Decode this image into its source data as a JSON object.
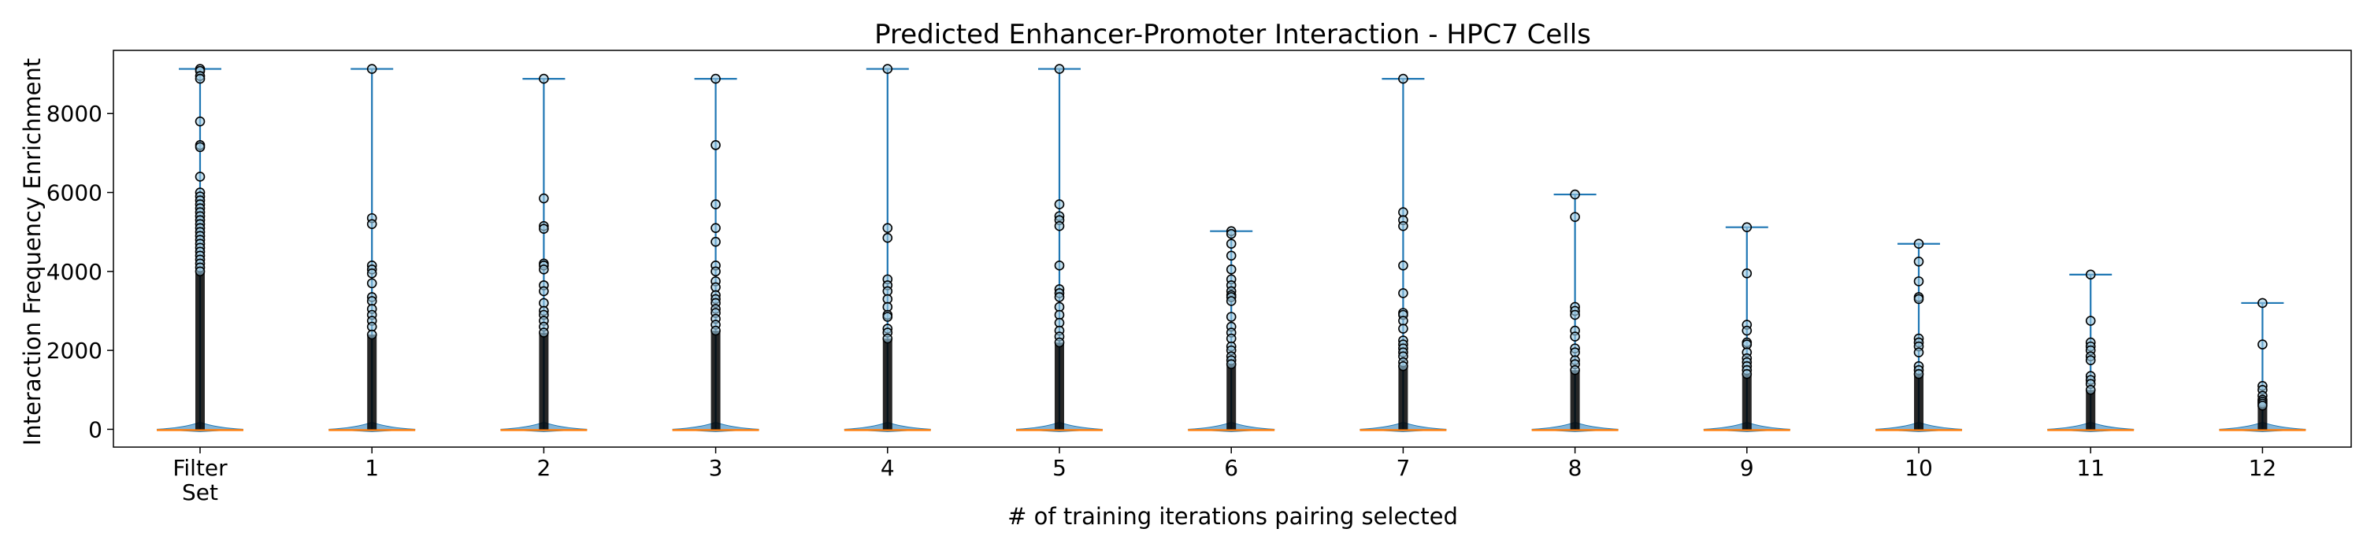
{
  "chart_data": {
    "type": "violin",
    "title": "Predicted Enhancer-Promoter Interaction - HPC7 Cells",
    "xlabel": "# of training iterations pairing selected",
    "ylabel": "Interaction Frequency Enrichment",
    "ylim": [
      -450,
      9600
    ],
    "yticks": [
      0,
      2000,
      4000,
      6000,
      8000
    ],
    "grid": false,
    "legend": "none",
    "colors": {
      "whisker": "#1f77b4",
      "violin_fill": "#1f77b4",
      "median": "#ff7f0e",
      "outlier_edge": "#000000"
    },
    "categories": [
      {
        "label": [
          "Filter",
          "Set"
        ],
        "max": 9130,
        "outliers": [
          9130,
          9080,
          8950,
          8880,
          7800,
          7200,
          7150,
          6400,
          6000,
          5900,
          5800,
          5700,
          5600,
          5500,
          5400,
          5300,
          5200,
          5100,
          5000,
          4900,
          4800,
          4700,
          4600,
          4500,
          4400,
          4300,
          4200,
          4100,
          4000
        ]
      },
      {
        "label": [
          "1"
        ],
        "max": 9130,
        "outliers": [
          9130,
          5350,
          5200,
          4150,
          4050,
          3950,
          3700,
          3350,
          3250,
          3050,
          2900,
          2750,
          2600,
          2400
        ]
      },
      {
        "label": [
          "2"
        ],
        "max": 8880,
        "outliers": [
          8880,
          5850,
          5150,
          5080,
          4200,
          4150,
          4050,
          3650,
          3500,
          3200,
          3000,
          2900,
          2750,
          2600,
          2450
        ]
      },
      {
        "label": [
          "3"
        ],
        "max": 8880,
        "outliers": [
          8880,
          7200,
          5700,
          5100,
          4750,
          4150,
          4000,
          3750,
          3600,
          3400,
          3300,
          3200,
          3050,
          2950,
          2800,
          2650,
          2500
        ]
      },
      {
        "label": [
          "4"
        ],
        "max": 9130,
        "outliers": [
          9130,
          5100,
          4850,
          3800,
          3650,
          3500,
          3300,
          3100,
          2900,
          2850,
          2550,
          2450,
          2300
        ]
      },
      {
        "label": [
          "5"
        ],
        "max": 9130,
        "outliers": [
          9130,
          5700,
          5400,
          5300,
          5150,
          4150,
          3550,
          3450,
          3350,
          3100,
          2900,
          2700,
          2500,
          2350,
          2200
        ]
      },
      {
        "label": [
          "6"
        ],
        "max": 5020,
        "outliers": [
          5020,
          4950,
          4700,
          4400,
          4050,
          3800,
          3650,
          3500,
          3400,
          3350,
          3250,
          2850,
          2600,
          2450,
          2300,
          2100,
          2000,
          1850,
          1750,
          1650
        ]
      },
      {
        "label": [
          "7"
        ],
        "max": 8880,
        "outliers": [
          8880,
          5500,
          5300,
          5150,
          4150,
          3450,
          2950,
          2900,
          2750,
          2550,
          2250,
          2150,
          2050,
          1950,
          1850,
          1700,
          1600
        ]
      },
      {
        "label": [
          "8"
        ],
        "max": 5950,
        "outliers": [
          5950,
          5380,
          3100,
          3000,
          2900,
          2500,
          2350,
          2050,
          1950,
          1750,
          1650,
          1500
        ]
      },
      {
        "label": [
          "9"
        ],
        "max": 5120,
        "outliers": [
          5120,
          3950,
          2650,
          2500,
          2200,
          2150,
          1950,
          1800,
          1700,
          1600,
          1500,
          1400
        ]
      },
      {
        "label": [
          "10"
        ],
        "max": 4700,
        "outliers": [
          4700,
          4250,
          3750,
          3350,
          3300,
          2300,
          2200,
          2100,
          1950,
          1600,
          1500,
          1400
        ]
      },
      {
        "label": [
          "11"
        ],
        "max": 3920,
        "outliers": [
          3920,
          2750,
          2200,
          2100,
          2000,
          1850,
          1750,
          1350,
          1250,
          1150,
          1000
        ]
      },
      {
        "label": [
          "12"
        ],
        "max": 3200,
        "outliers": [
          3200,
          2150,
          1100,
          1000,
          850,
          750,
          700,
          650,
          600
        ]
      }
    ]
  }
}
